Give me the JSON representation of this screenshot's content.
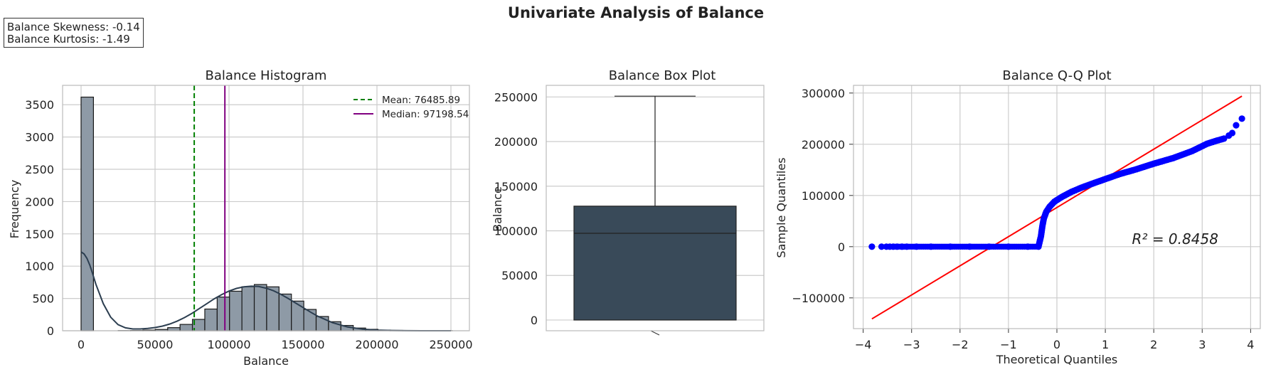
{
  "figure": {
    "suptitle": "Univariate Analysis of Balance",
    "stats": [
      "Balance Skewness: -0.14",
      "Balance Kurtosis: -1.49"
    ]
  },
  "colors": {
    "hist_fill": "#8e9aa6",
    "kde": "#2c3e50",
    "box_fill": "#394a59",
    "mean_line": "#008000",
    "median_line": "#800080",
    "qq_points": "#0000ff",
    "qq_line": "#ff0000",
    "grid": "#cccccc",
    "spine": "#bbbbbb"
  },
  "chart_data": [
    {
      "type": "bar",
      "title": "Balance Histogram",
      "xlabel": "Balance",
      "ylabel": "Frequency",
      "xlim": [
        -12500,
        262500
      ],
      "ylim": [
        0,
        3800
      ],
      "xticks": [
        0,
        50000,
        100000,
        150000,
        200000,
        250000
      ],
      "xtick_labels": [
        "0",
        "50000",
        "100000",
        "150000",
        "200000",
        "250000"
      ],
      "yticks": [
        0,
        500,
        1000,
        1500,
        2000,
        2500,
        3000,
        3500
      ],
      "ytick_labels": [
        "0",
        "500",
        "1000",
        "1500",
        "2000",
        "2500",
        "3000",
        "3500"
      ],
      "bin_edges": [
        0,
        8363,
        16726,
        25089,
        33452,
        41815,
        50178,
        58541,
        66904,
        75267,
        83630,
        91993,
        100356,
        108719,
        117082,
        125445,
        133808,
        142171,
        150534,
        158897,
        167260,
        175623,
        183986,
        192349,
        200712,
        209075,
        217438,
        225801,
        234164,
        242527,
        250890
      ],
      "counts": [
        3618,
        0,
        0,
        2,
        4,
        10,
        20,
        48,
        98,
        176,
        336,
        522,
        612,
        682,
        716,
        680,
        568,
        459,
        330,
        221,
        140,
        82,
        42,
        22,
        10,
        5,
        3,
        1,
        1,
        1
      ],
      "kde": {
        "x": [
          0,
          2000,
          4000,
          6000,
          8000,
          10000,
          15000,
          20000,
          25000,
          30000,
          35000,
          40000,
          45000,
          50000,
          55000,
          60000,
          65000,
          70000,
          75000,
          80000,
          85000,
          90000,
          95000,
          100000,
          105000,
          110000,
          115000,
          120000,
          125000,
          130000,
          135000,
          140000,
          145000,
          150000,
          155000,
          160000,
          170000,
          180000,
          190000,
          200000,
          210000,
          220000,
          230000,
          240000,
          250000
        ],
        "y": [
          1220,
          1190,
          1120,
          1010,
          870,
          720,
          420,
          210,
          95,
          45,
          28,
          28,
          35,
          50,
          72,
          105,
          150,
          205,
          270,
          345,
          420,
          495,
          560,
          615,
          655,
          680,
          690,
          685,
          660,
          620,
          565,
          500,
          430,
          360,
          290,
          225,
          125,
          60,
          25,
          10,
          4,
          1,
          0,
          0,
          0
        ]
      },
      "series": [
        {
          "name": "Mean: 76485.89",
          "value": 76485.89,
          "style": "dashed"
        },
        {
          "name": "Median: 97198.54",
          "value": 97198.54,
          "style": "solid"
        }
      ],
      "legend": "top-right",
      "grid": true
    },
    {
      "type": "box",
      "title": "Balance Box Plot",
      "xlabel": "",
      "ylabel": "Balance",
      "ylim": [
        -12000,
        263000
      ],
      "yticks": [
        0,
        50000,
        100000,
        150000,
        200000,
        250000
      ],
      "ytick_labels": [
        "0",
        "50000",
        "100000",
        "150000",
        "200000",
        "250000"
      ],
      "stats": {
        "min": 0,
        "q1": 0,
        "median": 97198.54,
        "q3": 127644,
        "max": 250898
      },
      "grid": true
    },
    {
      "type": "scatter",
      "title": "Balance Q-Q Plot",
      "xlabel": "Theoretical Quantiles",
      "ylabel": "Sample Quantiles",
      "xlim": [
        -4.2,
        4.2
      ],
      "ylim": [
        -160000,
        315000
      ],
      "xticks": [
        -4,
        -3,
        -2,
        -1,
        0,
        1,
        2,
        3,
        4
      ],
      "xtick_labels": [
        "−4",
        "−3",
        "−2",
        "−1",
        "0",
        "1",
        "2",
        "3",
        "4"
      ],
      "yticks": [
        -100000,
        0,
        100000,
        200000,
        300000
      ],
      "ytick_labels": [
        "−100000",
        "0",
        "100000",
        "200000",
        "300000"
      ],
      "points": [
        [
          -3.82,
          0
        ],
        [
          -3.62,
          0
        ],
        [
          -3.52,
          0
        ],
        [
          -3.45,
          0
        ],
        [
          -3.38,
          0
        ],
        [
          -3.3,
          0
        ],
        [
          -3.2,
          0
        ],
        [
          -3.1,
          0
        ],
        [
          -2.9,
          0
        ],
        [
          -2.6,
          0
        ],
        [
          -2.2,
          0
        ],
        [
          -1.8,
          0
        ],
        [
          -1.4,
          0
        ],
        [
          -1.0,
          0
        ],
        [
          -0.6,
          0
        ],
        [
          -0.38,
          0
        ],
        [
          -0.33,
          20000
        ],
        [
          -0.3,
          40000
        ],
        [
          -0.27,
          55000
        ],
        [
          -0.22,
          68000
        ],
        [
          -0.15,
          78000
        ],
        [
          -0.05,
          88000
        ],
        [
          0.1,
          97000
        ],
        [
          0.3,
          107000
        ],
        [
          0.5,
          115000
        ],
        [
          0.7,
          122000
        ],
        [
          1.0,
          132000
        ],
        [
          1.3,
          142000
        ],
        [
          1.6,
          150000
        ],
        [
          2.0,
          162000
        ],
        [
          2.4,
          173000
        ],
        [
          2.8,
          187000
        ],
        [
          3.1,
          201000
        ],
        [
          3.3,
          207000
        ],
        [
          3.45,
          211000
        ],
        [
          3.55,
          217000
        ],
        [
          3.62,
          222000
        ],
        [
          3.7,
          237000
        ],
        [
          3.82,
          250000
        ]
      ],
      "fit_line": {
        "x": [
          -3.82,
          3.82
        ],
        "y": [
          -141000,
          294000
        ]
      },
      "annotation": {
        "text": "R² = 0.8458",
        "x": 1.55,
        "y": 5000
      },
      "grid": true
    }
  ]
}
